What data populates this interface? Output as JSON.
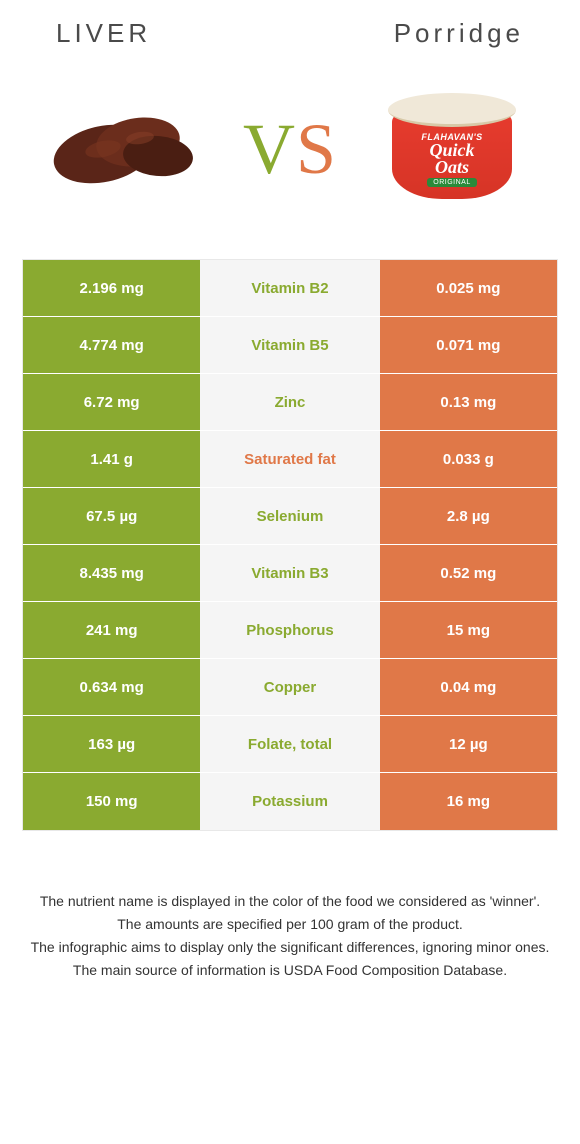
{
  "header": {
    "left_title": "LIVER",
    "right_title": "Porridge"
  },
  "vs": {
    "text": "VS",
    "color_left": "#8aaa30",
    "color_right": "#e07848"
  },
  "colors": {
    "liver": "#8aaa30",
    "porridge": "#e07848",
    "mid_bg": "#f5f5f5",
    "mid_text_winner_left": "#8aaa30",
    "mid_text_winner_right": "#e07848"
  },
  "nutrients": [
    {
      "name": "Vitamin B2",
      "left": "2.196 mg",
      "right": "0.025 mg",
      "winner": "left"
    },
    {
      "name": "Vitamin B5",
      "left": "4.774 mg",
      "right": "0.071 mg",
      "winner": "left"
    },
    {
      "name": "Zinc",
      "left": "6.72 mg",
      "right": "0.13 mg",
      "winner": "left"
    },
    {
      "name": "Saturated fat",
      "left": "1.41 g",
      "right": "0.033 g",
      "winner": "right"
    },
    {
      "name": "Selenium",
      "left": "67.5 µg",
      "right": "2.8 µg",
      "winner": "left"
    },
    {
      "name": "Vitamin B3",
      "left": "8.435 mg",
      "right": "0.52 mg",
      "winner": "left"
    },
    {
      "name": "Phosphorus",
      "left": "241 mg",
      "right": "15 mg",
      "winner": "left"
    },
    {
      "name": "Copper",
      "left": "0.634 mg",
      "right": "0.04 mg",
      "winner": "left"
    },
    {
      "name": "Folate, total",
      "left": "163 µg",
      "right": "12 µg",
      "winner": "left"
    },
    {
      "name": "Potassium",
      "left": "150 mg",
      "right": "16 mg",
      "winner": "left"
    }
  ],
  "cup": {
    "brand": "FLAHAVAN'S",
    "main1": "Quick",
    "main2": "Oats",
    "tag": "ORIGINAL"
  },
  "footer": {
    "l1": "The nutrient name is displayed in the color of the food we considered as 'winner'.",
    "l2": "The amounts are specified per 100 gram of the product.",
    "l3": "The infographic aims to display only the significant differences, ignoring minor ones.",
    "l4": "The main source of information is USDA Food Composition Database."
  }
}
